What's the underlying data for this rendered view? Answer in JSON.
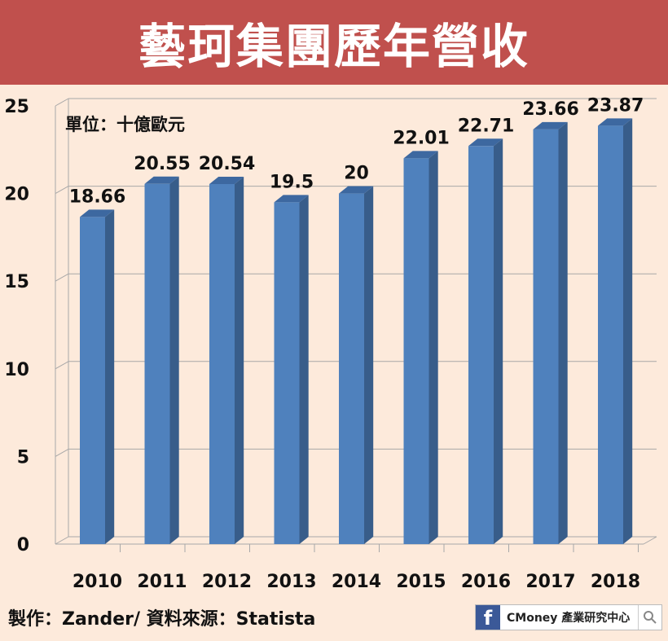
{
  "header": {
    "title": "藝珂集團歷年營收"
  },
  "colors": {
    "background": "#fdeadb",
    "banner": "#c0504d",
    "bar_front": "#4f81bd",
    "bar_side": "#385d8a",
    "bar_top": "#3d68a0",
    "grid": "#a8a8a8"
  },
  "chart_data": {
    "type": "bar",
    "title": "藝珂集團歷年營收",
    "unit_label": "單位：十億歐元",
    "categories": [
      "2010",
      "2011",
      "2012",
      "2013",
      "2014",
      "2015",
      "2016",
      "2017",
      "2018"
    ],
    "values": [
      18.66,
      20.55,
      20.54,
      19.5,
      20,
      22.01,
      22.71,
      23.66,
      23.87
    ],
    "data_labels": [
      "18.66",
      "20.55",
      "20.54",
      "19.5",
      "20",
      "22.01",
      "22.71",
      "23.66",
      "23.87"
    ],
    "yticks": [
      0,
      5,
      10,
      15,
      20,
      25
    ],
    "ylim": [
      0,
      25
    ],
    "xlabel": "",
    "ylabel": "",
    "grid": true,
    "style": "3d-column"
  },
  "footer": {
    "credit": "製作：Zander/ 資料來源：Statista",
    "brand": "CMoney 產業研究中心",
    "fb_icon": "f",
    "search_icon": "search-icon"
  }
}
